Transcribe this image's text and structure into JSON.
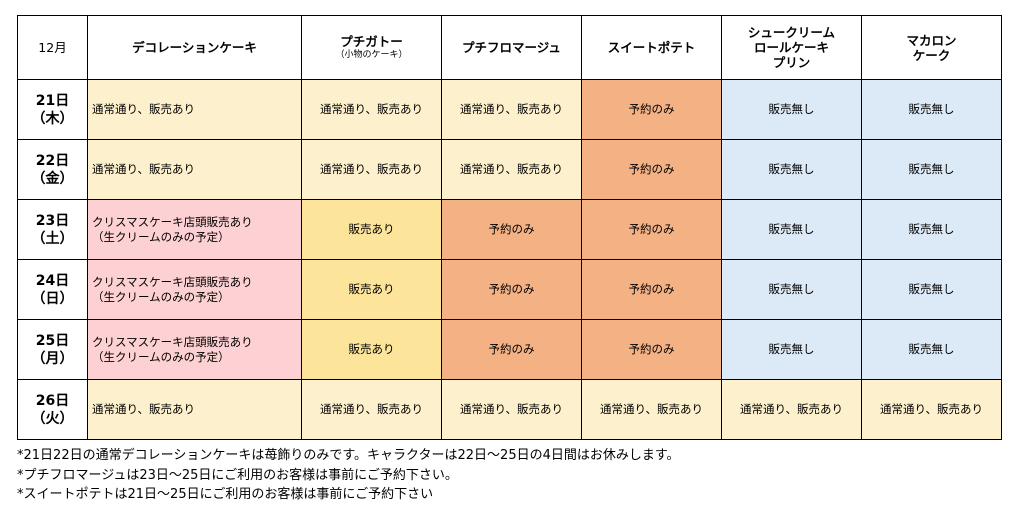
{
  "headers": [
    {
      "label": "12月",
      "sub": ""
    },
    {
      "label": "デコレーションケーキ",
      "sub": ""
    },
    {
      "label": "プチガトー",
      "sub": "（小物のケーキ）"
    },
    {
      "label": "プチフロマージュ",
      "sub": ""
    },
    {
      "label": "スイートポテト",
      "sub": ""
    },
    {
      "label": "シュークリーム\nロールケーキ\nプリン",
      "sub": ""
    },
    {
      "label": "マカロン\nケーク",
      "sub": ""
    }
  ],
  "rows": [
    {
      "day": "21日",
      "weekday": "（木）",
      "cells": [
        "通常通り、販売あり",
        "通常通り、販売あり",
        "通常通り、販売あり",
        "予約のみ",
        "販売無し",
        "販売無し"
      ]
    },
    {
      "day": "22日",
      "weekday": "（金）",
      "cells": [
        "通常通り、販売あり",
        "通常通り、販売あり",
        "通常通り、販売あり",
        "予約のみ",
        "販売無し",
        "販売無し"
      ]
    },
    {
      "day": "23日",
      "weekday": "（土）",
      "cells": [
        "クリスマスケーキ店頭販売あり\n（生クリームのみの予定）",
        "販売あり",
        "予約のみ",
        "予約のみ",
        "販売無し",
        "販売無し"
      ]
    },
    {
      "day": "24日",
      "weekday": "（日）",
      "cells": [
        "クリスマスケーキ店頭販売あり\n（生クリームのみの予定）",
        "販売あり",
        "予約のみ",
        "予約のみ",
        "販売無し",
        "販売無し"
      ]
    },
    {
      "day": "25日",
      "weekday": "（月）",
      "cells": [
        "クリスマスケーキ店頭販売あり\n（生クリームのみの予定）",
        "販売あり",
        "予約のみ",
        "予約のみ",
        "販売無し",
        "販売無し"
      ]
    },
    {
      "day": "26日",
      "weekday": "（火）",
      "cells": [
        "通常通り、販売あり",
        "通常通り、販売あり",
        "通常通り、販売あり",
        "通常通り、販売あり",
        "通常通り、販売あり",
        "通常通り、販売あり"
      ]
    }
  ],
  "colors": {
    "cream": "#fdf0cc",
    "pink": "#fdd1d3",
    "yellow": "#fde49b",
    "orange": "#f4b183",
    "blue": "#dce9f6"
  },
  "notes": [
    "*21日22日の通常デコレーションケーキは苺飾りのみです。キャラクターは22日～25日の4日間はお休みします。",
    "*プチフロマージュは23日～25日にご利用のお客様は事前にご予約下さい。",
    "*スイートポテトは21日～25日にご利用のお客様は事前にご予約下さい"
  ]
}
